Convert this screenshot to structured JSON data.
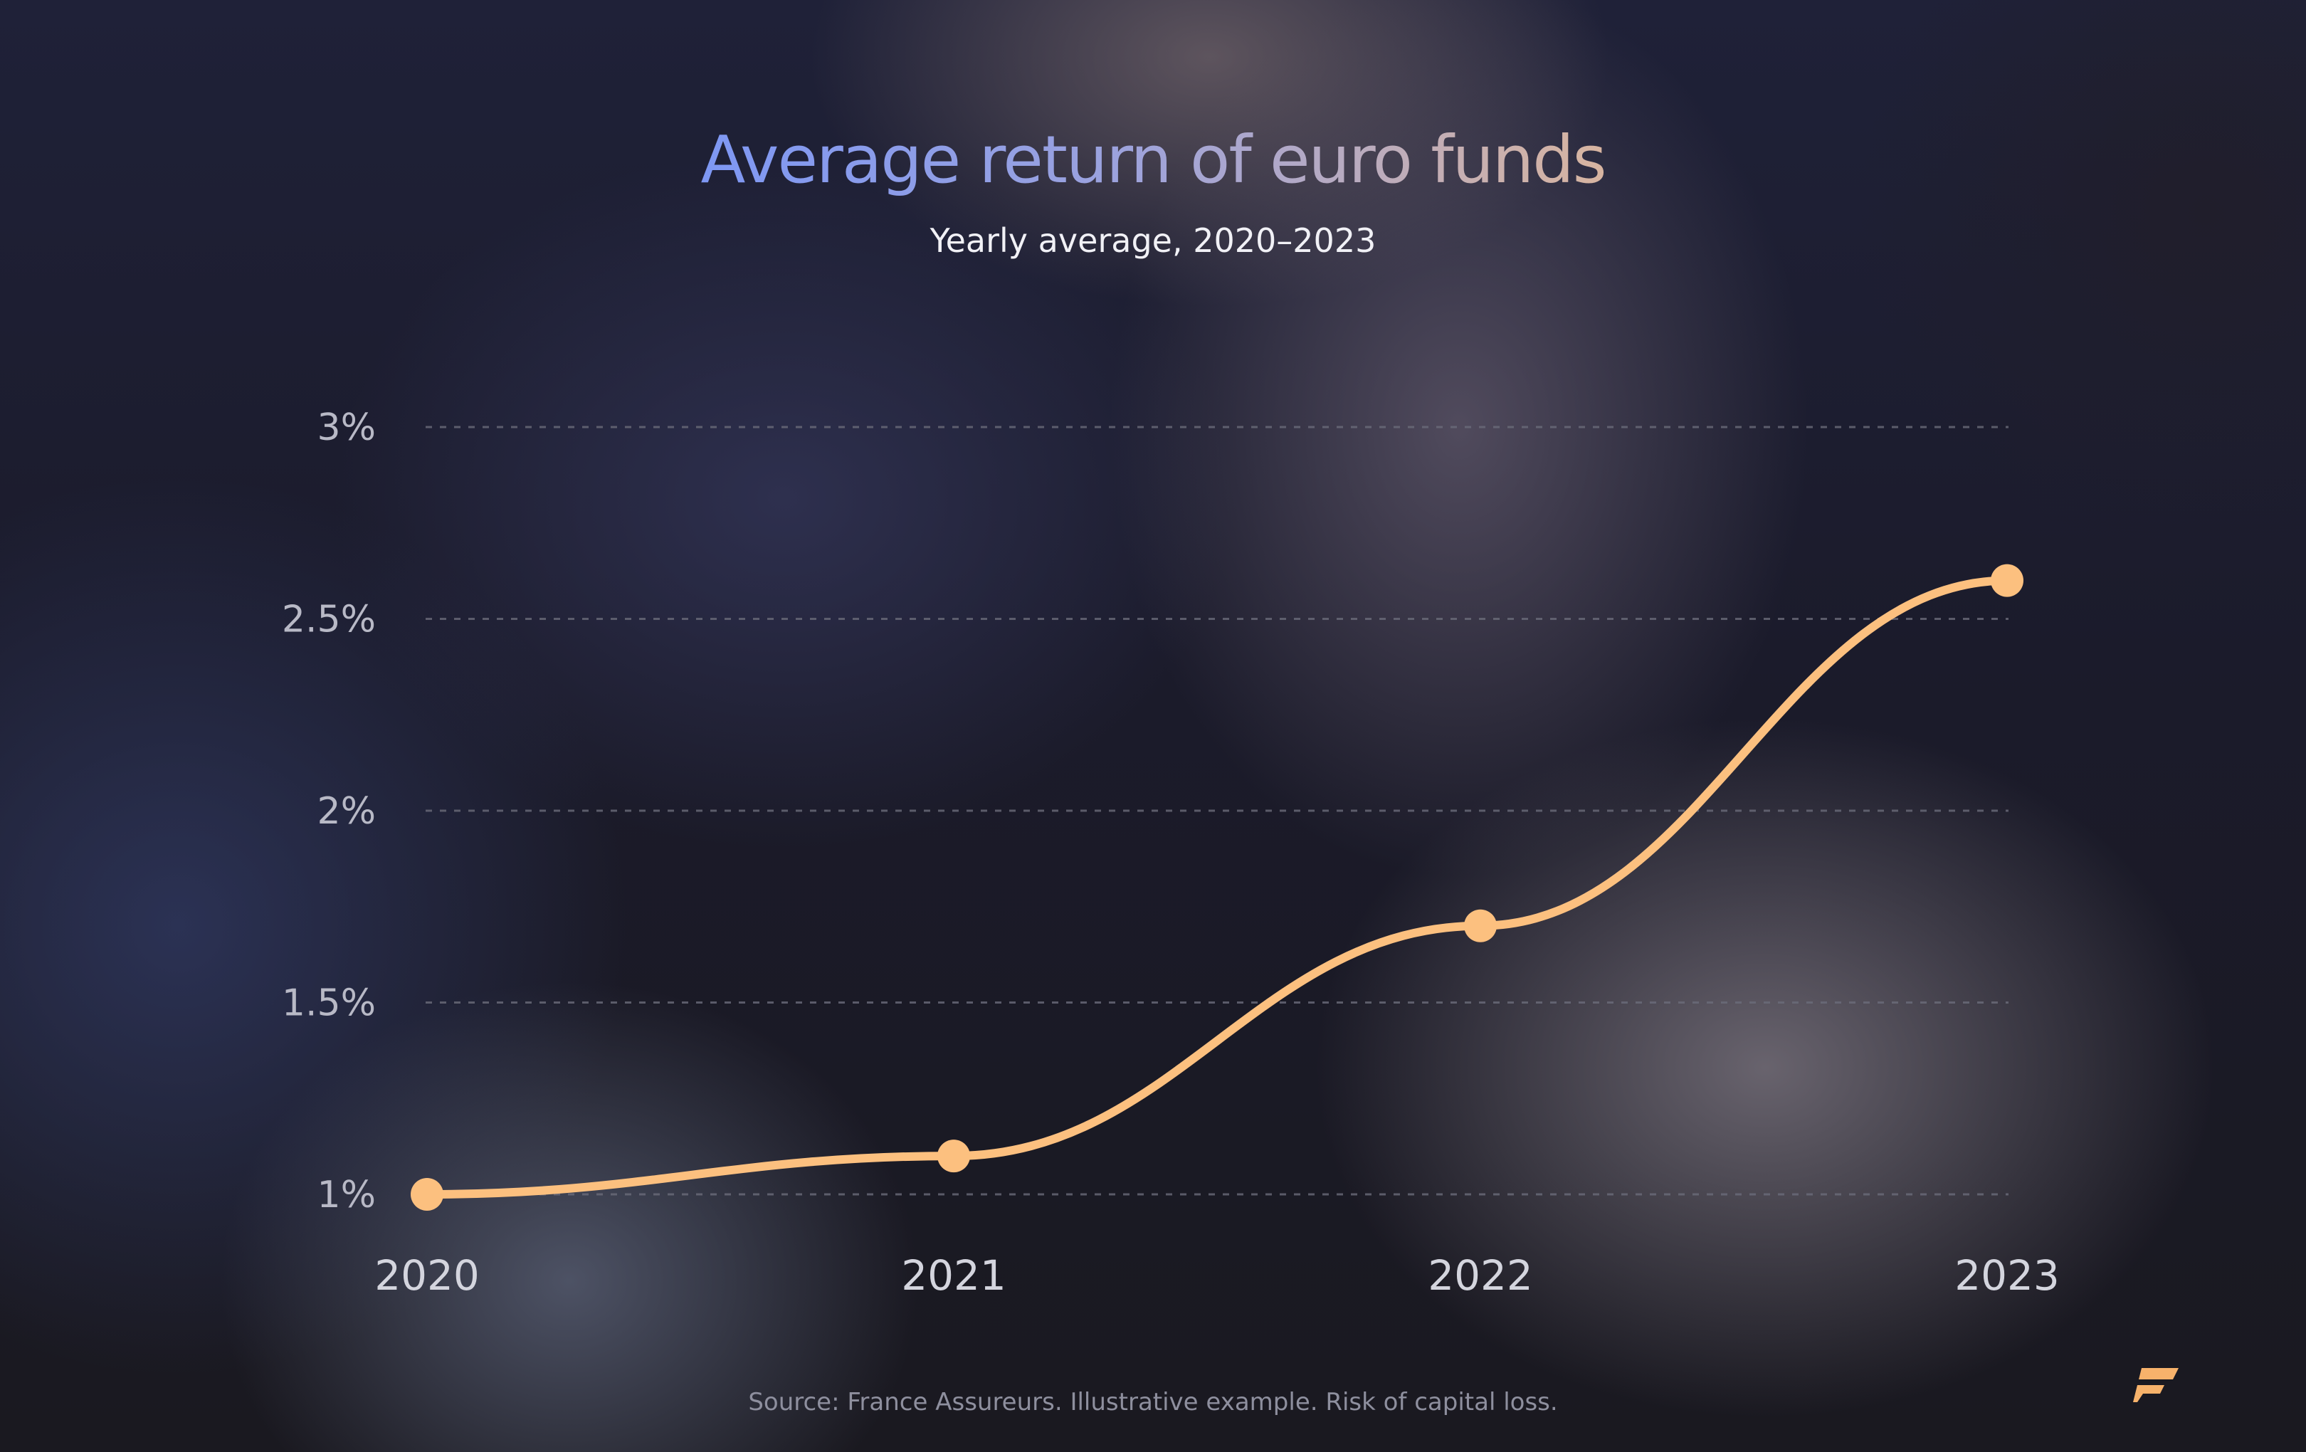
{
  "page": {
    "title": "Average return of euro funds",
    "subtitle": "Yearly average, 2020–2023",
    "source": "Source: France Assureurs. Illustrative example. Risk of capital loss.",
    "logo_icon": "brand-logo-icon"
  },
  "colors": {
    "line": "#fcc07f",
    "grid": "#6b6c7a",
    "title_start": "#7d97f4",
    "title_end": "#d9b59f"
  },
  "chart_data": {
    "type": "line",
    "title": "Average return of euro funds",
    "subtitle": "Yearly average, 2020–2023",
    "categories": [
      "2020",
      "2021",
      "2022",
      "2023"
    ],
    "series": [
      {
        "values": [
          1.0,
          1.1,
          1.7,
          2.6
        ]
      }
    ],
    "y_unit": "%",
    "yticks": [
      1,
      1.5,
      2,
      2.5,
      3
    ],
    "ytick_labels": [
      "1%",
      "1.5%",
      "2%",
      "2.5%",
      "3%"
    ],
    "ylim": [
      1,
      3
    ],
    "xlabel": "",
    "ylabel": "",
    "grid": true,
    "grid_style": "dashed-horizontal",
    "legend": "none",
    "curve": "smooth",
    "markers": true
  }
}
